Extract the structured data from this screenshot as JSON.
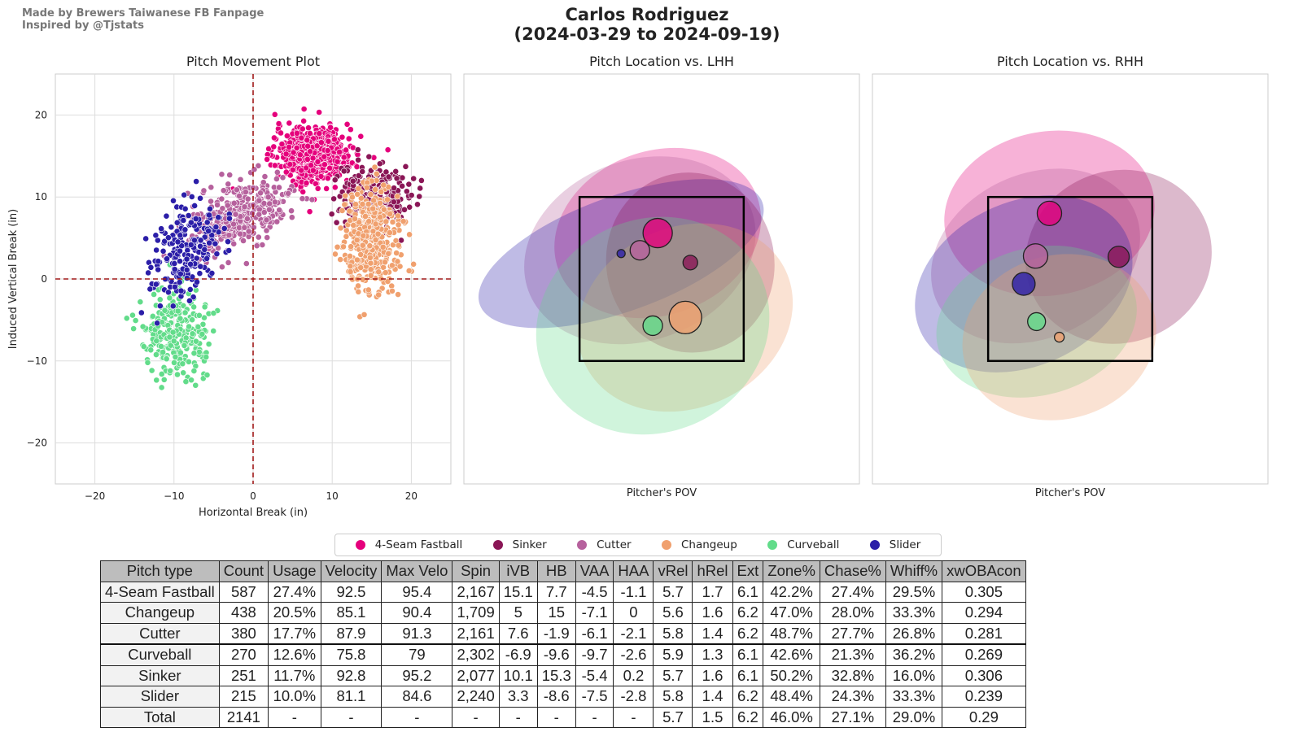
{
  "header": {
    "credit_line1": "Made by Brewers Taiwanese FB Fanpage",
    "credit_line2": "Inspired by @Tjstats",
    "title_line1": "Carlos Rodriguez",
    "title_line2": "(2024-03-29 to 2024-09-19)"
  },
  "pitches": [
    {
      "name": "4-Seam Fastball",
      "color": "#e5007c"
    },
    {
      "name": "Sinker",
      "color": "#8a1656"
    },
    {
      "name": "Cutter",
      "color": "#b6619d"
    },
    {
      "name": "Changeup",
      "color": "#f0a06e"
    },
    {
      "name": "Curveball",
      "color": "#62dc8a"
    },
    {
      "name": "Slider",
      "color": "#2b1ea8"
    }
  ],
  "chart_data": [
    {
      "type": "scatter",
      "title": "Pitch Movement Plot",
      "xlabel": "Horizontal Break (in)",
      "ylabel": "Induced Vertical Break (in)",
      "xlim": [
        -25,
        25
      ],
      "ylim": [
        -25,
        25
      ],
      "xticks": [
        -20,
        -10,
        0,
        10,
        20
      ],
      "yticks": [
        -20,
        -10,
        0,
        10,
        20
      ],
      "grid": true,
      "clusters": [
        {
          "pitch": "4-Seam Fastball",
          "count": 587,
          "mean_hb": 7.7,
          "mean_ivb": 15.1,
          "sd_hb": 2.4,
          "sd_ivb": 1.7
        },
        {
          "pitch": "Sinker",
          "count": 251,
          "mean_hb": 15.3,
          "mean_ivb": 10.1,
          "sd_hb": 2.2,
          "sd_ivb": 2.0
        },
        {
          "pitch": "Cutter",
          "count": 380,
          "mean_hb": -1.9,
          "mean_ivb": 7.6,
          "sd_hb": 3.2,
          "sd_ivb": 1.9
        },
        {
          "pitch": "Changeup",
          "count": 438,
          "mean_hb": 15,
          "mean_ivb": 5,
          "sd_hb": 1.8,
          "sd_ivb": 3.2
        },
        {
          "pitch": "Curveball",
          "count": 270,
          "mean_hb": -9.6,
          "mean_ivb": -6.9,
          "sd_hb": 2.0,
          "sd_ivb": 2.6
        },
        {
          "pitch": "Slider",
          "count": 215,
          "mean_hb": -8.6,
          "mean_ivb": 3.3,
          "sd_hb": 2.4,
          "sd_ivb": 2.8
        }
      ]
    },
    {
      "type": "scatter",
      "title": "Pitch Location vs. LHH",
      "xlabel": "Pitcher's POV",
      "xlim": [
        -2,
        2
      ],
      "ylim": [
        0,
        5
      ],
      "zone": {
        "x": [
          -0.83,
          0.83
        ],
        "z": [
          1.5,
          3.5
        ]
      },
      "groups": [
        {
          "pitch": "4-Seam Fastball",
          "x": -0.04,
          "z": 3.06,
          "size": 18,
          "sx": 1.07,
          "sz": 1.0,
          "angle": -20
        },
        {
          "pitch": "Cutter",
          "x": -0.22,
          "z": 2.85,
          "size": 12,
          "sx": 1.2,
          "sz": 1.1,
          "angle": -20
        },
        {
          "pitch": "Slider",
          "x": -0.41,
          "z": 2.81,
          "size": 5,
          "sx": 1.52,
          "sz": 0.7,
          "angle": -20
        },
        {
          "pitch": "Sinker",
          "x": 0.29,
          "z": 2.7,
          "size": 9,
          "sx": 0.85,
          "sz": 1.1,
          "angle": -10
        },
        {
          "pitch": "Changeup",
          "x": 0.24,
          "z": 2.03,
          "size": 20,
          "sx": 1.12,
          "sz": 1.1,
          "angle": -25
        },
        {
          "pitch": "Curveball",
          "x": -0.09,
          "z": 1.93,
          "size": 12,
          "sx": 1.2,
          "sz": 1.3,
          "angle": -25
        }
      ]
    },
    {
      "type": "scatter",
      "title": "Pitch Location vs. RHH",
      "xlabel": "Pitcher's POV",
      "xlim": [
        -2,
        2
      ],
      "ylim": [
        0,
        5
      ],
      "zone": {
        "x": [
          -0.83,
          0.83
        ],
        "z": [
          1.5,
          3.5
        ]
      },
      "groups": [
        {
          "pitch": "4-Seam Fastball",
          "x": -0.21,
          "z": 3.3,
          "size": 15,
          "sx": 1.07,
          "sz": 1.0,
          "angle": -10
        },
        {
          "pitch": "Cutter",
          "x": -0.35,
          "z": 2.78,
          "size": 15,
          "sx": 1.1,
          "sz": 1.0,
          "angle": -25
        },
        {
          "pitch": "Sinker",
          "x": 0.49,
          "z": 2.77,
          "size": 13,
          "sx": 0.95,
          "sz": 1.05,
          "angle": -20
        },
        {
          "pitch": "Slider",
          "x": -0.47,
          "z": 2.44,
          "size": 14,
          "sx": 1.15,
          "sz": 1.0,
          "angle": -25
        },
        {
          "pitch": "Curveball",
          "x": -0.34,
          "z": 1.98,
          "size": 11,
          "sx": 1.03,
          "sz": 0.9,
          "angle": -15
        },
        {
          "pitch": "Changeup",
          "x": -0.11,
          "z": 1.79,
          "size": 6,
          "sx": 0.99,
          "sz": 1.0,
          "angle": -15
        }
      ]
    }
  ],
  "table": {
    "headers": [
      "Pitch type",
      "Count",
      "Usage",
      "Velocity",
      "Max Velo",
      "Spin",
      "iVB",
      "HB",
      "VAA",
      "HAA",
      "vRel",
      "hRel",
      "Ext",
      "Zone%",
      "Chase%",
      "Whiff%",
      "xwOBAcon"
    ],
    "rows": [
      [
        "4-Seam Fastball",
        "587",
        "27.4%",
        "92.5",
        "95.4",
        "2,167",
        "15.1",
        "7.7",
        "-4.5",
        "-1.1",
        "5.7",
        "1.7",
        "6.1",
        "42.2%",
        "27.4%",
        "29.5%",
        "0.305"
      ],
      [
        "Changeup",
        "438",
        "20.5%",
        "85.1",
        "90.4",
        "1,709",
        "5",
        "15",
        "-7.1",
        "0",
        "5.6",
        "1.6",
        "6.2",
        "47.0%",
        "28.0%",
        "33.3%",
        "0.294"
      ],
      [
        "Cutter",
        "380",
        "17.7%",
        "87.9",
        "91.3",
        "2,161",
        "7.6",
        "-1.9",
        "-6.1",
        "-2.1",
        "5.8",
        "1.4",
        "6.2",
        "48.7%",
        "27.7%",
        "26.8%",
        "0.281"
      ],
      [
        "Curveball",
        "270",
        "12.6%",
        "75.8",
        "79",
        "2,302",
        "-6.9",
        "-9.6",
        "-9.7",
        "-2.6",
        "5.9",
        "1.3",
        "6.1",
        "42.6%",
        "21.3%",
        "36.2%",
        "0.269"
      ],
      [
        "Sinker",
        "251",
        "11.7%",
        "92.8",
        "95.2",
        "2,077",
        "10.1",
        "15.3",
        "-5.4",
        "0.2",
        "5.7",
        "1.6",
        "6.1",
        "50.2%",
        "32.8%",
        "16.0%",
        "0.306"
      ],
      [
        "Slider",
        "215",
        "10.0%",
        "81.1",
        "84.6",
        "2,240",
        "3.3",
        "-8.6",
        "-7.5",
        "-2.8",
        "5.8",
        "1.4",
        "6.2",
        "48.4%",
        "24.3%",
        "33.3%",
        "0.239"
      ],
      [
        "Total",
        "2141",
        "-",
        "-",
        "-",
        "-",
        "-",
        "-",
        "-",
        "-",
        "5.7",
        "1.5",
        "6.2",
        "46.0%",
        "27.1%",
        "29.0%",
        "0.29"
      ]
    ]
  }
}
